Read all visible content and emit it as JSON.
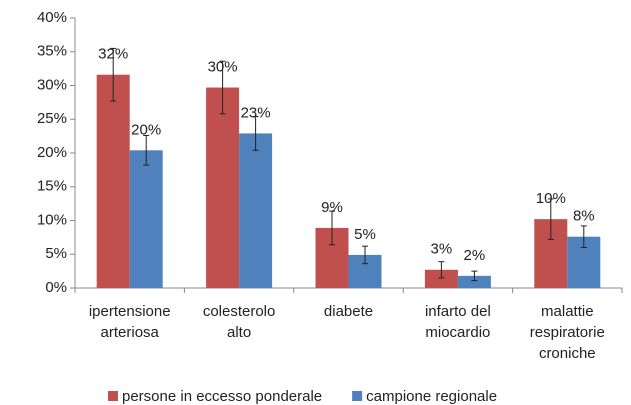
{
  "chart_data": {
    "type": "bar",
    "categories": [
      "ipertensione\narteriosa",
      "colesterolo\nalto",
      "diabete",
      "infarto del\nmiocardio",
      "malattie\nrespiratorie\ncroniche"
    ],
    "series": [
      {
        "name": "persone in eccesso ponderale",
        "color": "#c0504d",
        "values": [
          31.6,
          29.7,
          8.9,
          2.7,
          10.2
        ],
        "value_labels": [
          "32%",
          "30%",
          "9%",
          "3%",
          "10%"
        ],
        "errors": [
          3.9,
          3.9,
          2.5,
          1.2,
          3.0
        ]
      },
      {
        "name": "campione regionale",
        "color": "#4f81bd",
        "values": [
          20.4,
          22.9,
          4.9,
          1.8,
          7.6
        ],
        "value_labels": [
          "20%",
          "23%",
          "5%",
          "2%",
          "8%"
        ],
        "errors": [
          2.2,
          2.5,
          1.3,
          0.7,
          1.6
        ]
      }
    ],
    "ylim": [
      0,
      40
    ],
    "yticks": [
      {
        "value": 0,
        "label": "0%"
      },
      {
        "value": 5,
        "label": "5%"
      },
      {
        "value": 10,
        "label": "10%"
      },
      {
        "value": 15,
        "label": "15%"
      },
      {
        "value": 20,
        "label": "20%"
      },
      {
        "value": 25,
        "label": "25%"
      },
      {
        "value": 30,
        "label": "30%"
      },
      {
        "value": 35,
        "label": "35%"
      },
      {
        "value": 40,
        "label": "40%"
      }
    ],
    "grid": false,
    "legend": "bottom"
  }
}
